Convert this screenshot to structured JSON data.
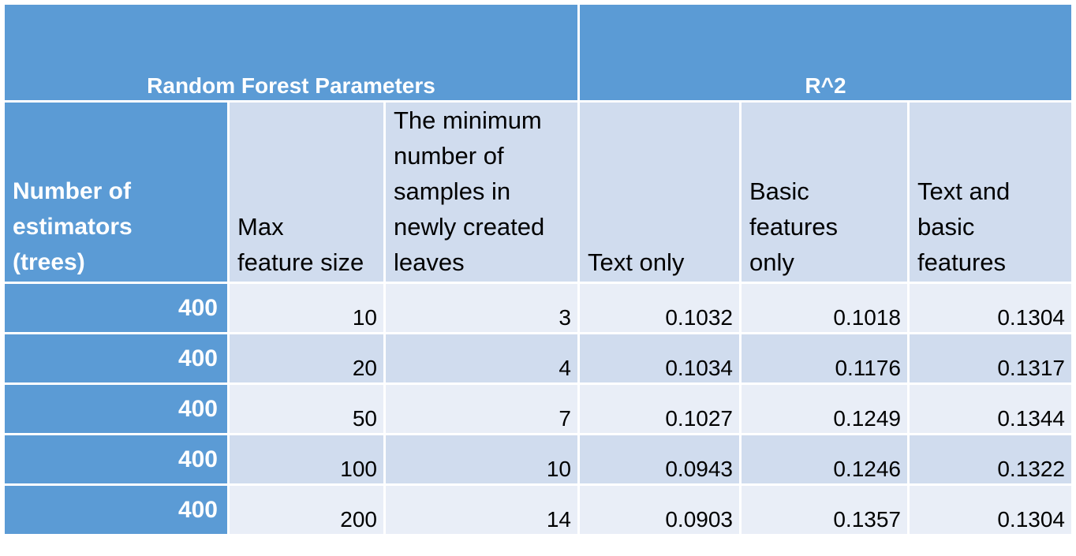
{
  "group_headers": {
    "parameters": "Random Forest Parameters",
    "r2": "R^2"
  },
  "column_headers": {
    "estimators": [
      "Number of",
      "estimators",
      "(trees)"
    ],
    "max_feature": [
      "Max",
      "feature size"
    ],
    "min_samples": [
      "The minimum",
      "number of",
      "samples in",
      "newly created",
      "leaves"
    ],
    "text_only": [
      "Text only"
    ],
    "basic_only": [
      "Basic",
      "features",
      "only"
    ],
    "text_basic": [
      "Text and",
      "basic",
      "features"
    ]
  },
  "rows": [
    {
      "estimators": "400",
      "max_feature": "10",
      "min_samples": "3",
      "text_only": "0.1032",
      "basic_only": "0.1018",
      "text_basic": "0.1304"
    },
    {
      "estimators": "400",
      "max_feature": "20",
      "min_samples": "4",
      "text_only": "0.1034",
      "basic_only": "0.1176",
      "text_basic": "0.1317"
    },
    {
      "estimators": "400",
      "max_feature": "50",
      "min_samples": "7",
      "text_only": "0.1027",
      "basic_only": "0.1249",
      "text_basic": "0.1344"
    },
    {
      "estimators": "400",
      "max_feature": "100",
      "min_samples": "10",
      "text_only": "0.0943",
      "basic_only": "0.1246",
      "text_basic": "0.1322"
    },
    {
      "estimators": "400",
      "max_feature": "200",
      "min_samples": "14",
      "text_only": "0.0903",
      "basic_only": "0.1357",
      "text_basic": "0.1304"
    }
  ],
  "colors": {
    "header_blue": "#5b9bd5",
    "band_light": "#e9eef7",
    "band_mid": "#d0dcee",
    "white": "#ffffff"
  }
}
